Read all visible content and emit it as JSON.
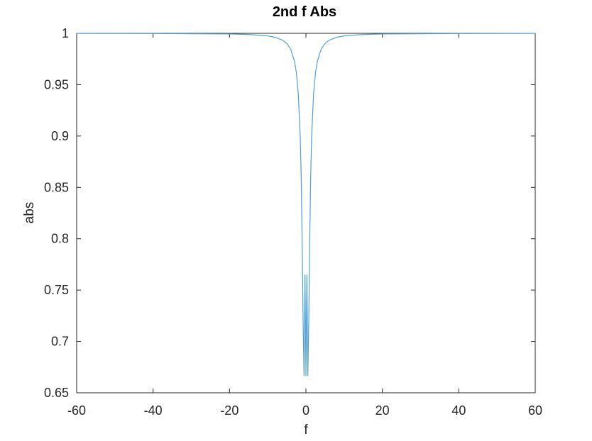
{
  "chart_data": {
    "type": "line",
    "title": "2nd f Abs",
    "xlabel": "f",
    "ylabel": "abs",
    "xlim": [
      -60,
      60
    ],
    "ylim": [
      0.65,
      1
    ],
    "xticks": [
      -60,
      -40,
      -20,
      0,
      20,
      40,
      60
    ],
    "yticks": [
      0.65,
      0.7,
      0.75,
      0.8,
      0.85,
      0.9,
      0.95,
      1
    ],
    "xtick_labels": [
      "-60",
      "-40",
      "-20",
      "0",
      "20",
      "40",
      "60"
    ],
    "ytick_labels": [
      "0.65",
      "0.7",
      "0.75",
      "0.8",
      "0.85",
      "0.9",
      "0.95",
      "1"
    ],
    "grid": false,
    "series": [
      {
        "color": "#4fa0d8",
        "x": [
          -60,
          -40,
          -20,
          -15,
          -10,
          -8,
          -6,
          -5,
          -4,
          -3,
          -2.5,
          -2,
          -1.5,
          -1.25,
          -1,
          -0.75,
          -0.5,
          -0.25,
          0,
          0.25,
          0.5,
          0.75,
          1,
          1.25,
          1.5,
          2,
          2.5,
          3,
          4,
          5,
          6,
          8,
          10,
          15,
          20,
          40,
          60
        ],
        "y": [
          0.9999,
          0.9998,
          0.9994,
          0.9989,
          0.9975,
          0.9961,
          0.9931,
          0.9901,
          0.9846,
          0.973,
          0.9615,
          0.9412,
          0.9,
          0.8622,
          0.8,
          0.7222,
          0.6667,
          0.7647,
          0.6667,
          0.7647,
          0.6667,
          0.7222,
          0.8,
          0.8622,
          0.9,
          0.9412,
          0.9615,
          0.973,
          0.9846,
          0.9901,
          0.9931,
          0.9961,
          0.9975,
          0.9989,
          0.9994,
          0.9998,
          0.9999
        ]
      }
    ]
  }
}
